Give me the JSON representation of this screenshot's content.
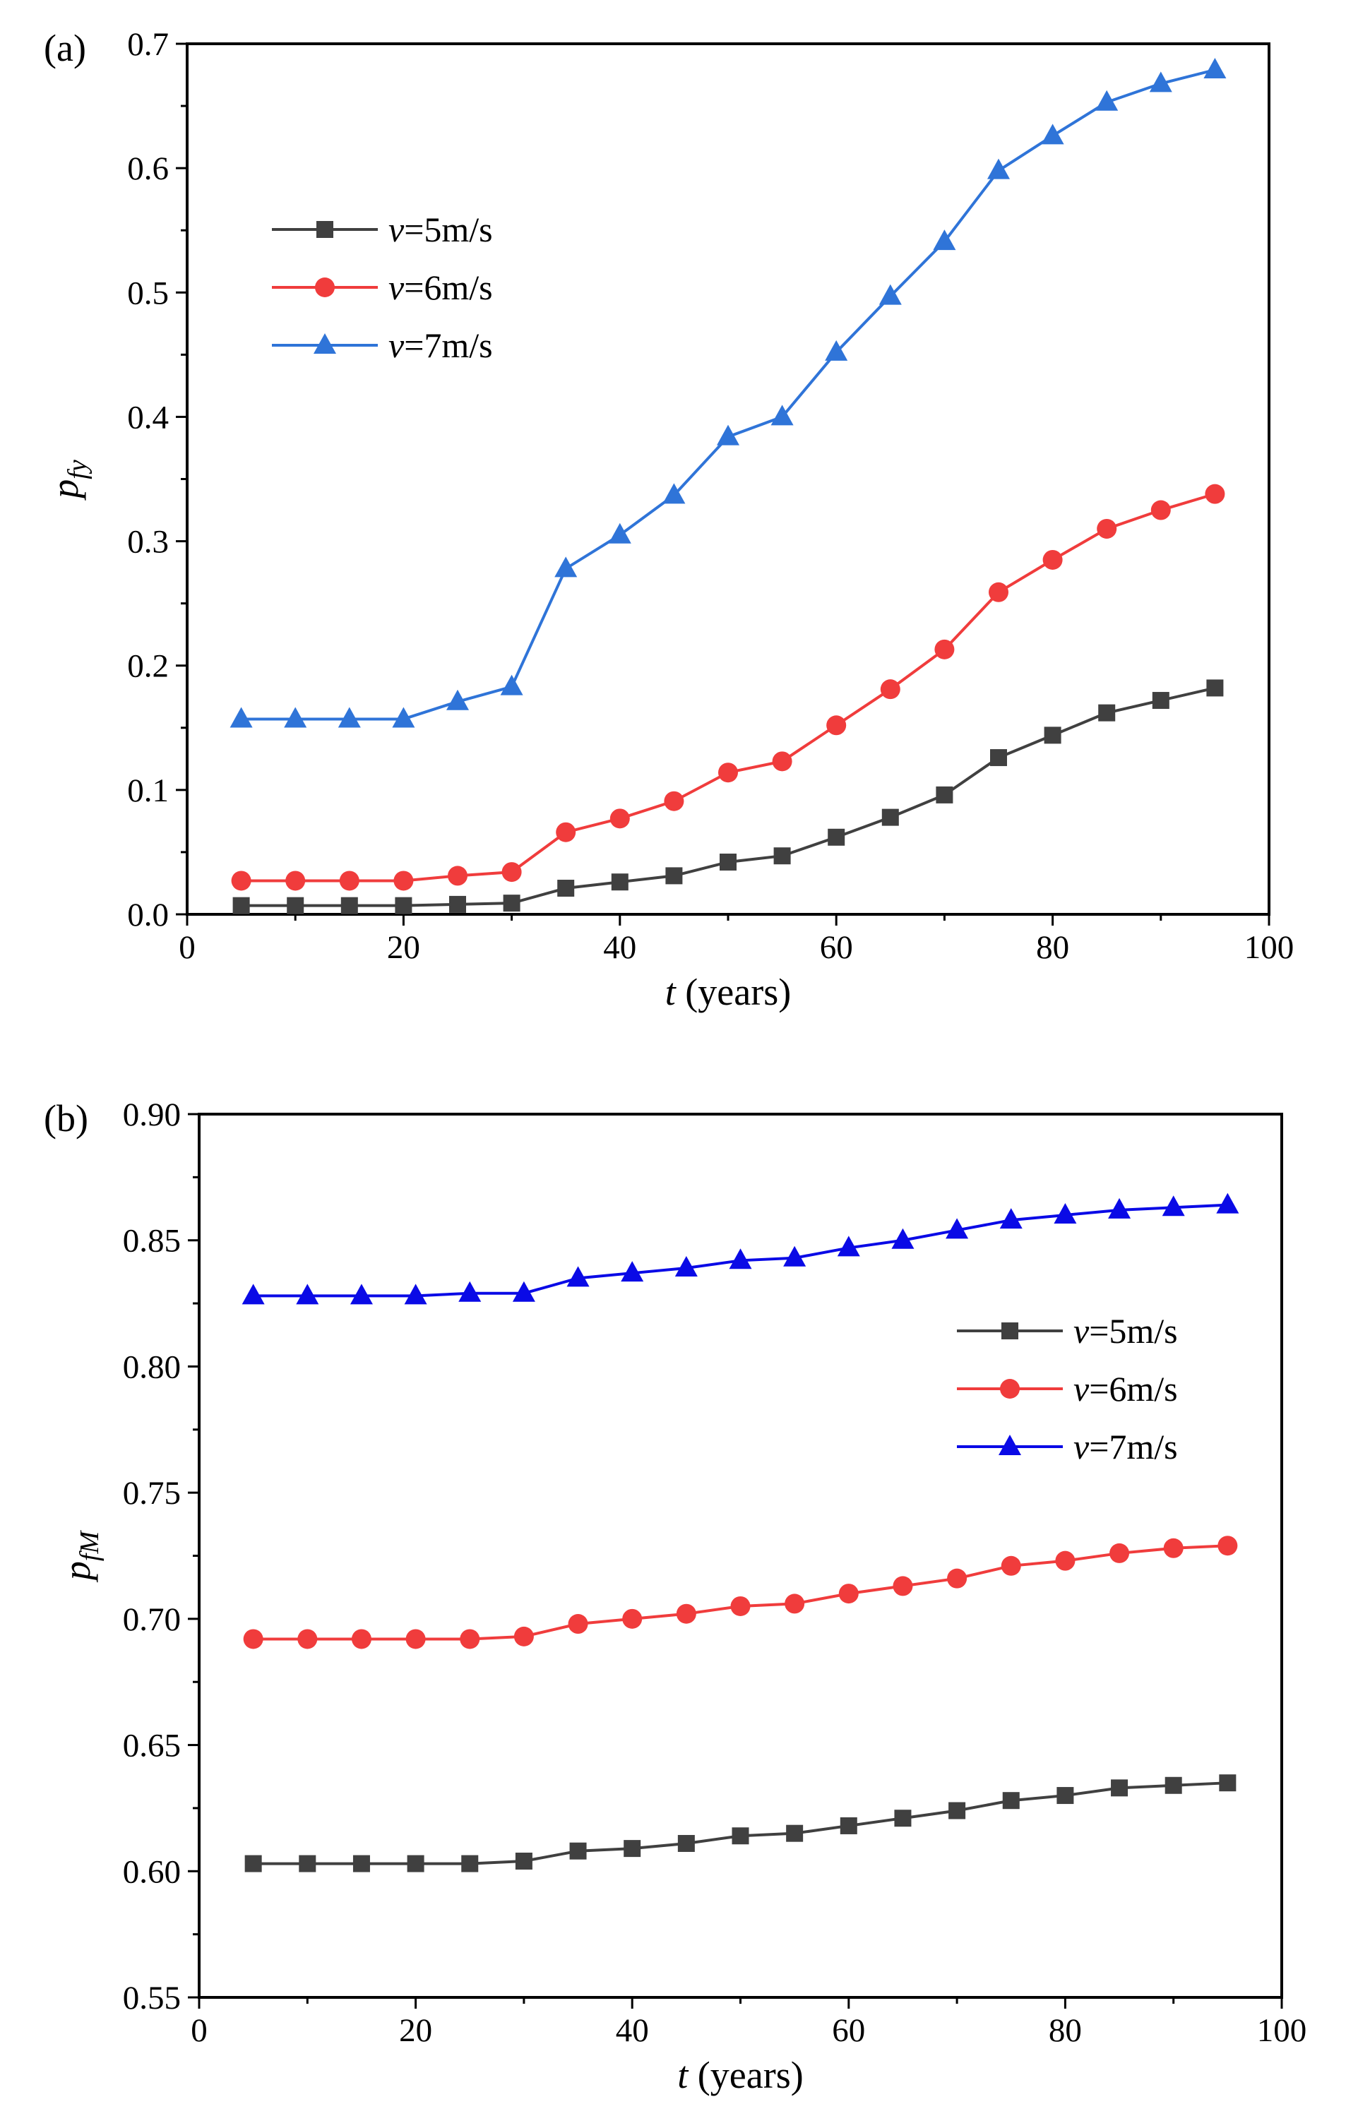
{
  "chart_data": [
    {
      "type": "line",
      "panel_label": "(a)",
      "xlabel_var": "t",
      "xlabel_rest": " (years)",
      "ylabel_main": "p",
      "ylabel_sub": "fy",
      "xlim": [
        0,
        100
      ],
      "ylim": [
        0,
        0.7
      ],
      "xticks": [
        0,
        20,
        40,
        60,
        80,
        100
      ],
      "xtick_labels": [
        "0",
        "20",
        "40",
        "60",
        "80",
        "100"
      ],
      "yticks": [
        0,
        0.1,
        0.2,
        0.3,
        0.4,
        0.5,
        0.6,
        0.7
      ],
      "ytick_labels": [
        "0.0",
        "0.1",
        "0.2",
        "0.3",
        "0.4",
        "0.5",
        "0.6",
        "0.7"
      ],
      "legend_position": "upper-left",
      "x": [
        5,
        10,
        15,
        20,
        25,
        30,
        35,
        40,
        45,
        50,
        55,
        60,
        65,
        70,
        75,
        80,
        85,
        90,
        95
      ],
      "series": [
        {
          "name_var": "v",
          "name_rest": "=5m/s",
          "color": "#404040",
          "marker": "square",
          "values": [
            0.007,
            0.007,
            0.007,
            0.007,
            0.008,
            0.009,
            0.021,
            0.026,
            0.031,
            0.042,
            0.047,
            0.062,
            0.078,
            0.096,
            0.126,
            0.144,
            0.162,
            0.172,
            0.182
          ]
        },
        {
          "name_var": "v",
          "name_rest": "=6m/s",
          "color": "#f03c3c",
          "marker": "circle",
          "values": [
            0.027,
            0.027,
            0.027,
            0.027,
            0.031,
            0.034,
            0.066,
            0.077,
            0.091,
            0.114,
            0.123,
            0.152,
            0.181,
            0.213,
            0.259,
            0.285,
            0.31,
            0.325,
            0.338
          ]
        },
        {
          "name_var": "v",
          "name_rest": "=7m/s",
          "color": "#2f74d8",
          "marker": "triangle",
          "values": [
            0.157,
            0.157,
            0.157,
            0.157,
            0.171,
            0.183,
            0.278,
            0.305,
            0.337,
            0.384,
            0.4,
            0.452,
            0.497,
            0.541,
            0.598,
            0.626,
            0.653,
            0.668,
            0.679
          ]
        }
      ]
    },
    {
      "type": "line",
      "panel_label": "(b)",
      "xlabel_var": "t",
      "xlabel_rest": " (years)",
      "ylabel_main": "p",
      "ylabel_sub": "fM",
      "xlim": [
        0,
        100
      ],
      "ylim": [
        0.55,
        0.9
      ],
      "xticks": [
        0,
        20,
        40,
        60,
        80,
        100
      ],
      "xtick_labels": [
        "0",
        "20",
        "40",
        "60",
        "80",
        "100"
      ],
      "yticks": [
        0.55,
        0.6,
        0.65,
        0.7,
        0.75,
        0.8,
        0.85,
        0.9
      ],
      "ytick_labels": [
        "0.55",
        "0.60",
        "0.65",
        "0.70",
        "0.75",
        "0.80",
        "0.85",
        "0.90"
      ],
      "legend_position": "right",
      "x": [
        5,
        10,
        15,
        20,
        25,
        30,
        35,
        40,
        45,
        50,
        55,
        60,
        65,
        70,
        75,
        80,
        85,
        90,
        95
      ],
      "series": [
        {
          "name_var": "v",
          "name_rest": "=5m/s",
          "color": "#404040",
          "marker": "square",
          "values": [
            0.603,
            0.603,
            0.603,
            0.603,
            0.603,
            0.604,
            0.608,
            0.609,
            0.611,
            0.614,
            0.615,
            0.618,
            0.621,
            0.624,
            0.628,
            0.63,
            0.633,
            0.634,
            0.635
          ]
        },
        {
          "name_var": "v",
          "name_rest": "=6m/s",
          "color": "#f03c3c",
          "marker": "circle",
          "values": [
            0.692,
            0.692,
            0.692,
            0.692,
            0.692,
            0.693,
            0.698,
            0.7,
            0.702,
            0.705,
            0.706,
            0.71,
            0.713,
            0.716,
            0.721,
            0.723,
            0.726,
            0.728,
            0.729
          ]
        },
        {
          "name_var": "v",
          "name_rest": "=7m/s",
          "color": "#0a0ae6",
          "marker": "triangle",
          "values": [
            0.828,
            0.828,
            0.828,
            0.828,
            0.829,
            0.829,
            0.835,
            0.837,
            0.839,
            0.842,
            0.843,
            0.847,
            0.85,
            0.854,
            0.858,
            0.86,
            0.862,
            0.863,
            0.864
          ]
        }
      ]
    }
  ]
}
